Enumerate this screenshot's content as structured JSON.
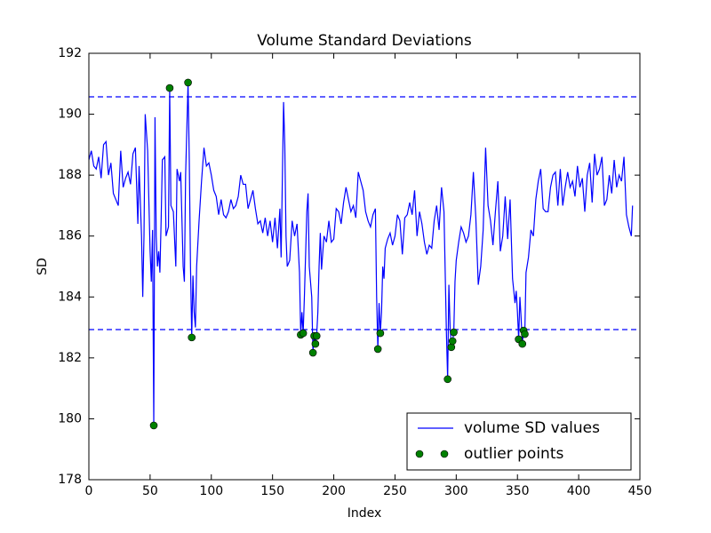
{
  "chart_data": {
    "type": "line",
    "title": "Volume Standard Deviations",
    "xlabel": "Index",
    "ylabel": "SD",
    "xlim": [
      0,
      450
    ],
    "xticks": [
      0,
      50,
      100,
      150,
      200,
      250,
      300,
      350,
      400,
      450
    ],
    "ylim": [
      178,
      192
    ],
    "yticks": [
      178,
      180,
      182,
      184,
      186,
      188,
      190,
      192
    ],
    "grid": false,
    "legend": "lower right",
    "reference_lines": {
      "color": "#0000ff",
      "values": [
        190.57,
        182.93
      ]
    },
    "series": [
      {
        "name": "volume SD values",
        "color": "#0000ff",
        "style": "line",
        "x": [
          0,
          2,
          4,
          6,
          8,
          10,
          12,
          14,
          16,
          18,
          20,
          22,
          24,
          26,
          28,
          30,
          32,
          34,
          36,
          38,
          40,
          41,
          43,
          44,
          45,
          46,
          48,
          50,
          51,
          52,
          53,
          54,
          55,
          56,
          57,
          58,
          59,
          60,
          62,
          63,
          65,
          66,
          67,
          69,
          71,
          72,
          74,
          75,
          77,
          78,
          79,
          81,
          82,
          83,
          84,
          85,
          86,
          87,
          88,
          90,
          92,
          94,
          96,
          98,
          100,
          102,
          104,
          106,
          108,
          110,
          112,
          114,
          116,
          118,
          120,
          122,
          124,
          126,
          128,
          130,
          132,
          134,
          136,
          138,
          140,
          142,
          144,
          146,
          148,
          150,
          152,
          154,
          156,
          157,
          159,
          160,
          161,
          162,
          164,
          166,
          168,
          170,
          172,
          173,
          174,
          175,
          176,
          178,
          179,
          180,
          181,
          182,
          183,
          184,
          185,
          186,
          187,
          188,
          189,
          190,
          192,
          194,
          196,
          198,
          200,
          202,
          204,
          206,
          208,
          210,
          212,
          214,
          216,
          218,
          220,
          222,
          224,
          226,
          228,
          230,
          232,
          234,
          235,
          236,
          237,
          238,
          239,
          240,
          241,
          242,
          244,
          246,
          248,
          250,
          252,
          254,
          256,
          258,
          260,
          262,
          264,
          266,
          268,
          270,
          272,
          274,
          276,
          278,
          280,
          282,
          284,
          286,
          288,
          290,
          292,
          293,
          294,
          295,
          296,
          297,
          298,
          299,
          300,
          302,
          304,
          306,
          308,
          310,
          312,
          314,
          316,
          318,
          320,
          322,
          324,
          326,
          328,
          330,
          332,
          334,
          336,
          338,
          340,
          342,
          344,
          346,
          348,
          349,
          350,
          351,
          352,
          353,
          354,
          355,
          356,
          357,
          359,
          361,
          363,
          365,
          367,
          369,
          371,
          373,
          375,
          377,
          379,
          381,
          383,
          385,
          387,
          389,
          391,
          393,
          395,
          397,
          399,
          401,
          403,
          405,
          407,
          409,
          411,
          413,
          415,
          417,
          419,
          421,
          423,
          425,
          427,
          429,
          431,
          433,
          435,
          437,
          439,
          441,
          443,
          444
        ],
        "values": [
          188.5,
          188.8,
          188.3,
          188.2,
          188.6,
          187.9,
          189.0,
          189.1,
          188.0,
          188.4,
          187.4,
          187.2,
          187.0,
          188.8,
          187.6,
          187.9,
          188.1,
          187.7,
          188.7,
          188.9,
          186.4,
          188.3,
          186.0,
          184.0,
          186.0,
          190.0,
          188.8,
          185.5,
          184.5,
          186.2,
          179.78,
          189.9,
          186.0,
          185.0,
          185.5,
          184.8,
          186.5,
          188.5,
          188.6,
          186.0,
          186.3,
          190.86,
          187.0,
          186.8,
          185.0,
          188.2,
          187.8,
          188.1,
          185.0,
          184.5,
          188.0,
          191.04,
          188.5,
          185.0,
          182.67,
          184.7,
          183.5,
          183.0,
          185.0,
          186.5,
          187.8,
          188.9,
          188.3,
          188.4,
          188.0,
          187.5,
          187.3,
          186.7,
          187.2,
          186.7,
          186.6,
          186.8,
          187.2,
          186.9,
          187.0,
          187.3,
          188.0,
          187.7,
          187.7,
          186.9,
          187.2,
          187.5,
          186.9,
          186.4,
          186.5,
          186.1,
          186.6,
          186.0,
          186.5,
          185.8,
          186.6,
          185.6,
          186.9,
          185.3,
          190.4,
          189.0,
          186.0,
          185.0,
          185.2,
          186.5,
          186.0,
          186.4,
          184.8,
          182.76,
          183.5,
          182.81,
          184.0,
          186.8,
          187.4,
          185.0,
          184.5,
          184.0,
          182.17,
          182.72,
          182.46,
          182.72,
          183.5,
          185.0,
          186.1,
          184.9,
          186.0,
          185.8,
          186.5,
          185.8,
          185.9,
          186.9,
          186.8,
          186.4,
          187.1,
          187.6,
          187.2,
          186.8,
          187.0,
          186.6,
          188.1,
          187.8,
          187.5,
          186.8,
          186.5,
          186.3,
          186.7,
          186.9,
          184.0,
          182.29,
          183.8,
          182.81,
          183.5,
          185.0,
          184.6,
          185.6,
          185.9,
          186.1,
          185.7,
          186.0,
          186.7,
          186.5,
          185.4,
          186.6,
          186.7,
          187.1,
          186.7,
          187.5,
          186.0,
          186.8,
          186.4,
          185.8,
          185.4,
          185.7,
          185.6,
          186.5,
          187.0,
          186.2,
          187.6,
          186.8,
          182.8,
          181.3,
          184.4,
          183.0,
          182.35,
          182.55,
          182.84,
          184.5,
          185.2,
          185.8,
          186.3,
          186.1,
          185.8,
          186.0,
          186.7,
          188.1,
          186.6,
          184.4,
          185.0,
          186.2,
          188.9,
          187.0,
          186.5,
          185.7,
          186.8,
          187.8,
          185.5,
          186.0,
          187.3,
          185.9,
          187.2,
          184.6,
          183.8,
          184.2,
          183.5,
          182.61,
          184.0,
          183.3,
          182.46,
          182.9,
          182.78,
          184.8,
          185.3,
          186.2,
          186.0,
          187.2,
          187.8,
          188.2,
          186.9,
          186.8,
          186.8,
          187.6,
          188.0,
          188.1,
          187.0,
          188.2,
          187.0,
          187.6,
          188.1,
          187.6,
          187.8,
          187.3,
          188.3,
          187.6,
          187.9,
          186.8,
          188.0,
          188.4,
          187.1,
          188.7,
          188.0,
          188.2,
          188.6,
          187.0,
          187.2,
          188.0,
          187.4,
          188.5,
          187.6,
          188.0,
          187.8,
          188.6,
          186.7,
          186.3,
          186.0,
          187.0
        ]
      },
      {
        "name": "outlier points",
        "color": "#008000",
        "style": "points",
        "x": [
          53,
          66,
          81,
          84,
          173,
          175,
          183,
          184,
          185,
          186,
          236,
          238,
          293,
          296,
          297,
          298,
          351,
          354,
          355,
          356
        ],
        "values": [
          179.78,
          190.86,
          191.04,
          182.67,
          182.76,
          182.81,
          182.17,
          182.72,
          182.46,
          182.72,
          182.29,
          182.81,
          181.3,
          182.35,
          182.55,
          182.84,
          182.61,
          182.46,
          182.9,
          182.78
        ]
      }
    ]
  }
}
